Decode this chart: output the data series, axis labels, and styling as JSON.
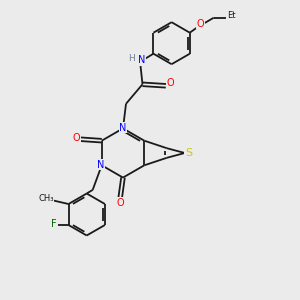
{
  "background_color": "#ebebeb",
  "bond_color": "#1a1a1a",
  "atom_colors": {
    "N": "#0000ff",
    "O": "#ff0000",
    "S": "#cccc00",
    "F": "#006600",
    "H": "#708090",
    "C": "#1a1a1a"
  },
  "figsize": [
    3.0,
    3.0
  ],
  "dpi": 100,
  "lw": 1.3,
  "fs": 6.5
}
